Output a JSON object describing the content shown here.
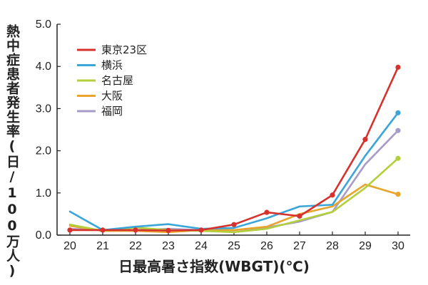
{
  "chart_data": {
    "type": "line",
    "xlabel": "日最高暑さ指数(WBGT)(℃)",
    "ylabel": "熱中症患者発生率(日/100万人)",
    "x": [
      20,
      21,
      22,
      23,
      24,
      25,
      26,
      27,
      28,
      29,
      30
    ],
    "xticks": [
      "20",
      "21",
      "22",
      "23",
      "24",
      "25",
      "26",
      "27",
      "28",
      "29",
      "30"
    ],
    "ylim": [
      0,
      5
    ],
    "yticks": [
      "0.0",
      "1.0",
      "2.0",
      "3.0",
      "4.0",
      "5.0"
    ],
    "ytick_values": [
      0,
      1,
      2,
      3,
      4,
      5
    ],
    "legend_position": "top-left",
    "grid": false,
    "series": [
      {
        "name": "東京23区",
        "color": "#d7312e",
        "markers": true,
        "values": [
          0.12,
          0.12,
          0.12,
          0.11,
          0.12,
          0.25,
          0.54,
          0.45,
          0.95,
          2.27,
          3.98
        ]
      },
      {
        "name": "横浜",
        "color": "#3aa6d8",
        "markers": false,
        "values": [
          0.56,
          0.12,
          0.2,
          0.26,
          0.15,
          0.17,
          0.4,
          0.68,
          0.72,
          1.88,
          2.9
        ]
      },
      {
        "name": "名古屋",
        "color": "#b3cf3b",
        "markers": false,
        "values": [
          0.25,
          0.1,
          0.18,
          0.12,
          0.1,
          0.07,
          0.15,
          0.35,
          0.55,
          1.12,
          1.82
        ]
      },
      {
        "name": "大阪",
        "color": "#e8a42b",
        "markers": false,
        "values": [
          0.22,
          0.1,
          0.1,
          0.07,
          0.12,
          0.12,
          0.2,
          0.5,
          0.68,
          1.2,
          0.97
        ]
      },
      {
        "name": "福岡",
        "color": "#a79bc8",
        "markers": false,
        "values": [
          0.15,
          0.12,
          0.12,
          0.15,
          0.12,
          0.12,
          0.18,
          0.32,
          0.55,
          1.68,
          2.48
        ]
      }
    ]
  }
}
